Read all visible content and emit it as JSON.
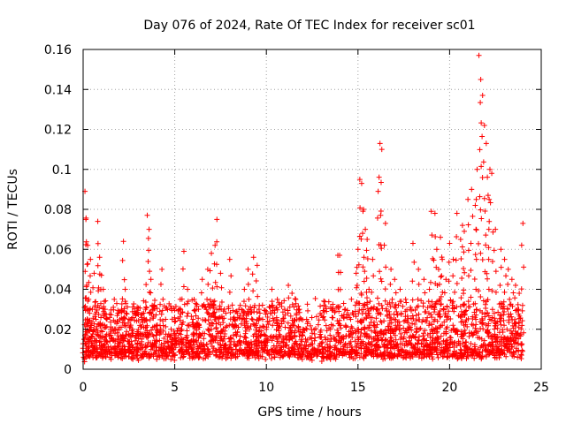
{
  "chart_data": {
    "type": "scatter",
    "title": "Day 076 of 2024, Rate Of TEC Index for receiver sc01",
    "xlabel": "GPS time / hours",
    "ylabel": "ROTI / TECUs",
    "xlim": [
      0,
      25
    ],
    "ylim": [
      0,
      0.16
    ],
    "xticks": [
      0,
      5,
      10,
      15,
      20,
      25
    ],
    "yticks": [
      0,
      0.02,
      0.04,
      0.06,
      0.08,
      0.1,
      0.12,
      0.14,
      0.16
    ],
    "xtick_labels": [
      "0",
      "5",
      "10",
      "15",
      "20",
      "25"
    ],
    "ytick_labels": [
      "0",
      "0.02",
      "0.04",
      "0.06",
      "0.08",
      "0.1",
      "0.12",
      "0.14",
      "0.16"
    ],
    "grid": true,
    "marker": "+",
    "color": "#ff0000",
    "series": [
      {
        "name": "ROTI",
        "x": [
          0.05,
          0.1,
          0.15,
          0.2,
          0.25,
          0.3,
          0.35,
          0.4,
          0.5,
          0.6,
          0.7,
          0.8,
          0.9,
          1.0,
          1.1,
          1.2,
          1.3,
          1.5,
          1.7,
          1.9,
          2.1,
          2.2,
          2.3,
          2.5,
          2.7,
          3.0,
          3.2,
          3.4,
          3.5,
          3.6,
          3.7,
          3.8,
          4.0,
          4.3,
          4.5,
          4.8,
          5.0,
          5.3,
          5.5,
          5.7,
          6.0,
          6.3,
          6.5,
          6.8,
          7.0,
          7.2,
          7.3,
          7.5,
          7.7,
          8.0,
          8.3,
          8.5,
          8.8,
          9.0,
          9.3,
          9.5,
          9.6,
          9.8,
          10.0,
          10.3,
          10.6,
          11.0,
          11.2,
          11.4,
          11.6,
          11.8,
          12.0,
          12.5,
          13.0,
          13.5,
          13.9,
          14.0,
          14.3,
          14.6,
          14.9,
          15.0,
          15.1,
          15.2,
          15.3,
          15.4,
          15.5,
          15.6,
          15.8,
          16.0,
          16.1,
          16.2,
          16.3,
          16.5,
          16.8,
          17.0,
          17.3,
          17.6,
          17.9,
          18.0,
          18.3,
          18.6,
          18.9,
          19.0,
          19.2,
          19.3,
          19.4,
          19.5,
          19.6,
          19.8,
          20.0,
          20.2,
          20.4,
          20.6,
          20.7,
          20.8,
          21.0,
          21.2,
          21.4,
          21.5,
          21.6,
          21.7,
          21.8,
          21.9,
          22.0,
          22.1,
          22.2,
          22.3,
          22.5,
          22.8,
          23.0,
          23.2,
          23.4,
          23.6,
          23.8,
          24.0
        ],
        "y": [
          0.015,
          0.089,
          0.075,
          0.042,
          0.062,
          0.035,
          0.028,
          0.055,
          0.03,
          0.048,
          0.025,
          0.074,
          0.056,
          0.047,
          0.04,
          0.03,
          0.025,
          0.02,
          0.035,
          0.028,
          0.03,
          0.064,
          0.04,
          0.025,
          0.02,
          0.018,
          0.025,
          0.03,
          0.077,
          0.07,
          0.045,
          0.03,
          0.02,
          0.05,
          0.025,
          0.02,
          0.018,
          0.035,
          0.059,
          0.04,
          0.025,
          0.03,
          0.045,
          0.05,
          0.058,
          0.062,
          0.075,
          0.048,
          0.03,
          0.055,
          0.025,
          0.03,
          0.04,
          0.05,
          0.056,
          0.052,
          0.03,
          0.025,
          0.02,
          0.04,
          0.035,
          0.03,
          0.042,
          0.038,
          0.035,
          0.03,
          0.02,
          0.018,
          0.016,
          0.02,
          0.057,
          0.057,
          0.03,
          0.025,
          0.048,
          0.06,
          0.095,
          0.093,
          0.08,
          0.07,
          0.065,
          0.04,
          0.055,
          0.03,
          0.089,
          0.113,
          0.11,
          0.073,
          0.05,
          0.045,
          0.04,
          0.035,
          0.03,
          0.063,
          0.05,
          0.045,
          0.04,
          0.079,
          0.078,
          0.06,
          0.05,
          0.066,
          0.055,
          0.045,
          0.063,
          0.055,
          0.078,
          0.065,
          0.072,
          0.069,
          0.085,
          0.09,
          0.082,
          0.1,
          0.157,
          0.145,
          0.137,
          0.122,
          0.113,
          0.087,
          0.1,
          0.098,
          0.07,
          0.06,
          0.055,
          0.05,
          0.045,
          0.042,
          0.038,
          0.073
        ]
      }
    ],
    "noise_baseline": [
      0.005,
      0.032
    ]
  }
}
